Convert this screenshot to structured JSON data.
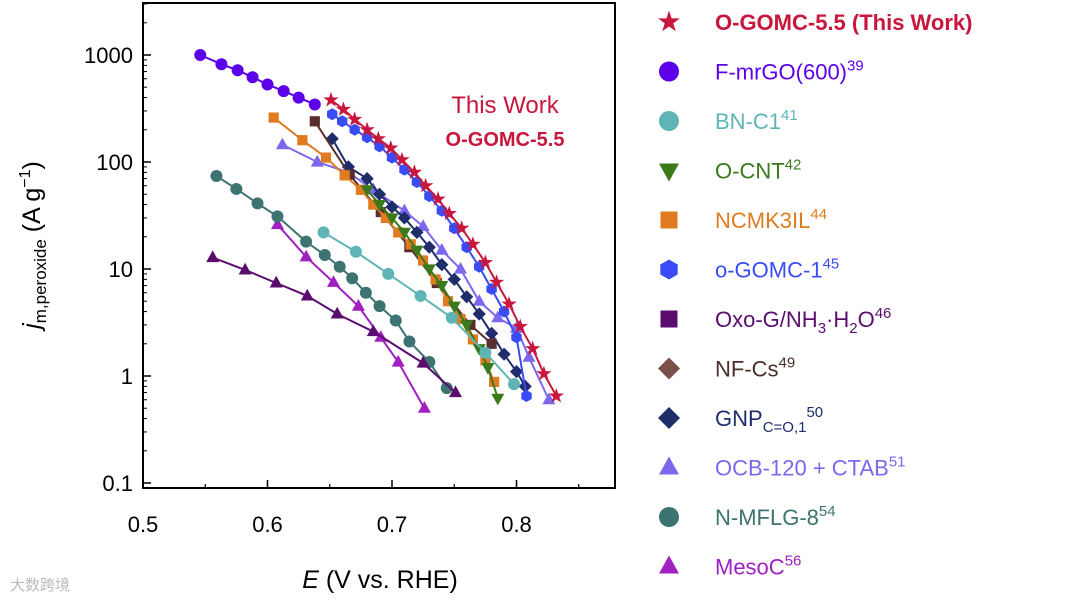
{
  "chart_data": {
    "type": "scatter",
    "title": "",
    "xlabel": {
      "italic": "E",
      "rest": " (V vs. RHE)"
    },
    "ylabel": {
      "italic": "j",
      "sub": "m,peroxide",
      "rest": " (A g",
      "sup": "−1",
      "close": ")"
    },
    "xscale": "linear",
    "yscale": "log",
    "xlim": [
      0.5,
      0.88
    ],
    "ylim": [
      0.1,
      3000
    ],
    "xticks": [
      {
        "v": 0.5,
        "label": "0.5"
      },
      {
        "v": 0.6,
        "label": "0.6"
      },
      {
        "v": 0.7,
        "label": "0.7"
      },
      {
        "v": 0.8,
        "label": "0.8"
      }
    ],
    "yticks": [
      {
        "v": 1000,
        "label": "1000"
      },
      {
        "v": 100,
        "label": "100"
      },
      {
        "v": 10,
        "label": "10"
      },
      {
        "v": 1,
        "label": "1"
      },
      {
        "v": 0.1,
        "label": "0.1"
      }
    ],
    "grid": false,
    "legend_placement": "right-outside",
    "annotations": [
      {
        "text": "This Work",
        "x": 0.79,
        "y": 320
      },
      {
        "text": "O-GOMC-5.5",
        "x": 0.79,
        "y": 150
      }
    ],
    "series": [
      {
        "name": "O-GOMC-5.5 (This Work)",
        "color": "#c8163c",
        "marker": "star",
        "x": [
          0.651,
          0.661,
          0.67,
          0.68,
          0.689,
          0.699,
          0.708,
          0.718,
          0.727,
          0.737,
          0.746,
          0.756,
          0.765,
          0.775,
          0.784,
          0.794,
          0.803,
          0.813,
          0.822,
          0.832
        ],
        "y": [
          380,
          310,
          250,
          200,
          165,
          135,
          105,
          80,
          60,
          45,
          33,
          24,
          17,
          11.5,
          7.5,
          4.7,
          2.9,
          1.8,
          1.05,
          0.65
        ]
      },
      {
        "name": "F-mrGO(600)",
        "color": "#5b00e8",
        "marker": "circle",
        "x": [
          0.546,
          0.563,
          0.576,
          0.588,
          0.6,
          0.613,
          0.625,
          0.638
        ],
        "y": [
          1000,
          820,
          720,
          620,
          530,
          460,
          400,
          345
        ]
      },
      {
        "name": "BN-C1",
        "color": "#5fb5b5",
        "marker": "circle",
        "x": [
          0.645,
          0.671,
          0.697,
          0.723,
          0.748,
          0.775,
          0.798
        ],
        "y": [
          22,
          14.5,
          9,
          5.6,
          3.5,
          1.65,
          0.84
        ]
      },
      {
        "name": "O-CNT",
        "color": "#3a7a1a",
        "marker": "tri-down",
        "x": [
          0.68,
          0.69,
          0.7,
          0.71,
          0.72,
          0.73,
          0.74,
          0.75,
          0.76,
          0.77,
          0.777,
          0.785
        ],
        "y": [
          55,
          40,
          30,
          22,
          15,
          10,
          7,
          4.5,
          3,
          1.8,
          1.2,
          0.62
        ]
      },
      {
        "name": "NCMK3IL",
        "color": "#e07b20",
        "marker": "square",
        "x": [
          0.605,
          0.628,
          0.647,
          0.662,
          0.675,
          0.685,
          0.695,
          0.705,
          0.715,
          0.725,
          0.735,
          0.745,
          0.755,
          0.765,
          0.775,
          0.782
        ],
        "y": [
          260,
          160,
          110,
          75,
          55,
          40,
          30,
          22,
          17,
          12,
          8,
          5,
          3.4,
          2.2,
          1.4,
          0.88
        ]
      },
      {
        "name": "o-GOMC-1",
        "color": "#3a4cf5",
        "marker": "hexagon",
        "x": [
          0.652,
          0.66,
          0.67,
          0.68,
          0.69,
          0.7,
          0.71,
          0.72,
          0.73,
          0.74,
          0.75,
          0.76,
          0.77,
          0.78,
          0.79,
          0.8,
          0.808
        ],
        "y": [
          280,
          240,
          200,
          170,
          140,
          110,
          85,
          65,
          48,
          35,
          24,
          16,
          10.5,
          6.5,
          4,
          2.3,
          0.65
        ]
      },
      {
        "name": "Oxo-G/NH3·H2O",
        "color": "#5a2e2e",
        "marker": "square",
        "x": [
          0.638,
          0.666,
          0.691,
          0.714,
          0.736,
          0.763,
          0.78
        ],
        "y": [
          240,
          76,
          34,
          16,
          7.4,
          3.0,
          2.0
        ]
      },
      {
        "name": "NF-Cs",
        "color": "#5a0d6e",
        "marker": "tri-up",
        "x": [
          0.556,
          0.582,
          0.607,
          0.632,
          0.656,
          0.685,
          0.725,
          0.751
        ],
        "y": [
          12.8,
          9.8,
          7.4,
          5.6,
          3.8,
          2.6,
          1.32,
          0.7
        ]
      },
      {
        "name": "GNP C=O,1",
        "color": "#1f2d6b",
        "marker": "diamond",
        "x": [
          0.652,
          0.665,
          0.68,
          0.69,
          0.7,
          0.71,
          0.72,
          0.73,
          0.74,
          0.75,
          0.76,
          0.77,
          0.78,
          0.79,
          0.8,
          0.807
        ],
        "y": [
          165,
          90,
          70,
          50,
          38,
          30,
          22,
          16,
          11,
          8,
          5.5,
          3.8,
          2.5,
          1.6,
          1.1,
          0.8
        ]
      },
      {
        "name": "OCB-120 + CTAB",
        "color": "#7b68ee",
        "marker": "tri-up",
        "x": [
          0.612,
          0.64,
          0.665,
          0.685,
          0.71,
          0.725,
          0.74,
          0.755,
          0.77,
          0.785,
          0.8,
          0.81,
          0.826
        ],
        "y": [
          145,
          100,
          80,
          55,
          35,
          25,
          15,
          10,
          5,
          3.5,
          2.8,
          1.5,
          0.6
        ]
      },
      {
        "name": "N-MFLG-8",
        "color": "#3d7370",
        "marker": "circle",
        "x": [
          0.559,
          0.575,
          0.592,
          0.608,
          0.631,
          0.646,
          0.658,
          0.668,
          0.679,
          0.69,
          0.703,
          0.714,
          0.73,
          0.744
        ],
        "y": [
          74,
          56,
          41,
          31,
          18,
          13.5,
          10.5,
          8.2,
          6,
          4.5,
          3.3,
          2.1,
          1.35,
          0.77
        ]
      },
      {
        "name": "MesoC",
        "color": "#a020c0",
        "marker": "tri-up",
        "x": [
          0.608,
          0.631,
          0.653,
          0.673,
          0.691,
          0.705,
          0.726
        ],
        "y": [
          26,
          13,
          7.5,
          4.5,
          2.3,
          1.35,
          0.5
        ]
      }
    ]
  },
  "legend": [
    {
      "color": "#c8163c",
      "marker": "star",
      "bold": true,
      "parts": [
        {
          "t": "O-GOMC-5.5 (This Work)"
        }
      ]
    },
    {
      "color": "#5b00e8",
      "marker": "circle",
      "parts": [
        {
          "t": "F-mrGO(600)"
        },
        {
          "sup": "39"
        }
      ]
    },
    {
      "color": "#5fb5b5",
      "marker": "circle",
      "parts": [
        {
          "t": "BN-C1"
        },
        {
          "sup": "41"
        }
      ]
    },
    {
      "color": "#3a7a1a",
      "marker": "tri-down",
      "parts": [
        {
          "t": "O-CNT"
        },
        {
          "sup": "42"
        }
      ]
    },
    {
      "color": "#e07b20",
      "marker": "square",
      "parts": [
        {
          "t": "NCMK3IL"
        },
        {
          "sup": "44"
        }
      ]
    },
    {
      "color": "#3a4cf5",
      "marker": "hexagon",
      "parts": [
        {
          "t": "o-GOMC-1"
        },
        {
          "sup": "45"
        }
      ]
    },
    {
      "color": "#5a0d6e",
      "marker": "square",
      "parts": [
        {
          "t": "Oxo-G/NH"
        },
        {
          "sub": "3"
        },
        {
          "t": "·H"
        },
        {
          "sub": "2"
        },
        {
          "t": "O"
        },
        {
          "sup": "46"
        }
      ]
    },
    {
      "color": "#5a2e2e",
      "textcolor": "#4a2e2a",
      "marker": "diamond",
      "mcolor": "#7a5048",
      "parts": [
        {
          "t": "NF-Cs"
        },
        {
          "sup": "49"
        }
      ]
    },
    {
      "color": "#1f2d6b",
      "marker": "diamond",
      "parts": [
        {
          "t": "GNP"
        },
        {
          "sub": "C=O,1"
        },
        {
          "sup": "50"
        }
      ]
    },
    {
      "color": "#7b68ee",
      "marker": "tri-up",
      "parts": [
        {
          "t": "OCB-120 + CTAB"
        },
        {
          "sup": "51"
        }
      ]
    },
    {
      "color": "#3d7370",
      "marker": "circle",
      "parts": [
        {
          "t": "N-MFLG-8"
        },
        {
          "sup": "54"
        }
      ]
    },
    {
      "color": "#a020c0",
      "marker": "tri-up",
      "parts": [
        {
          "t": "MesoC"
        },
        {
          "sup": "56"
        }
      ]
    }
  ],
  "watermark": "大数跨境"
}
